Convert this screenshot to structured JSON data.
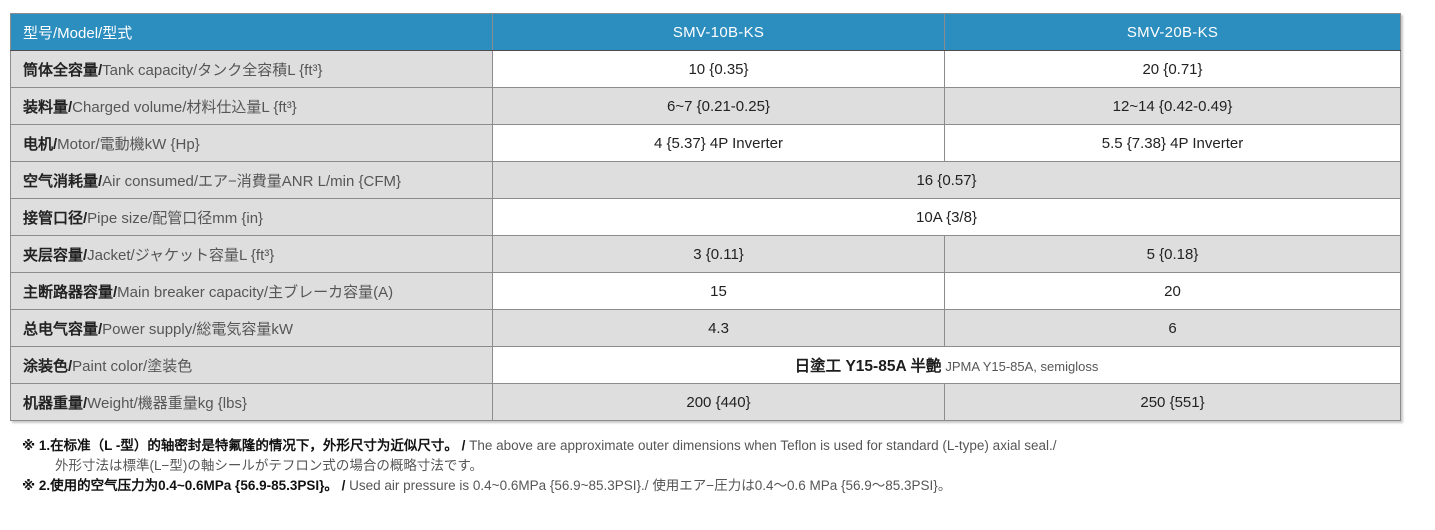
{
  "colors": {
    "header-bg": "#2c8ebf",
    "header-text": "#ffffff",
    "row-shade": "#dedede",
    "border": "#8c8c8c",
    "text-dark": "#222222",
    "text-gray": "#565656"
  },
  "table": {
    "header": {
      "label": "型号/Model/型式",
      "col1": "SMV-10B-KS",
      "col2": "SMV-20B-KS"
    },
    "rows": [
      {
        "label_zh": "筒体全容量/",
        "label_rest": "Tank capacity/タンク全容積L {ft³}",
        "v1": "10 {0.35}",
        "v2": "20 {0.71}"
      },
      {
        "label_zh": "装料量/",
        "label_rest": "Charged volume/材料仕込量L {ft³}",
        "v1": "6~7 {0.21-0.25}",
        "v2": "12~14 {0.42-0.49}"
      },
      {
        "label_zh": "电机/",
        "label_rest": "Motor/電動機kW {Hp}",
        "v1": "4 {5.37} 4P Inverter",
        "v2": "5.5 {7.38} 4P Inverter"
      },
      {
        "label_zh": "空气消耗量/",
        "label_rest": "Air consumed/エア−消費量ANR L/min {CFM}",
        "merged": "16 {0.57}"
      },
      {
        "label_zh": "接管口径/",
        "label_rest": "Pipe size/配管口径mm {in}",
        "merged": "10A {3/8}"
      },
      {
        "label_zh": "夹层容量/",
        "label_rest": "Jacket/ジャケット容量L {ft³}",
        "v1": "3 {0.11}",
        "v2": "5 {0.18}"
      },
      {
        "label_zh": "主断路器容量/",
        "label_rest": "Main breaker capacity/主ブレーカ容量(A)",
        "v1": "15",
        "v2": "20"
      },
      {
        "label_zh": "总电气容量/",
        "label_rest": "Power supply/総電気容量kW",
        "v1": "4.3",
        "v2": "6"
      },
      {
        "label_zh": "涂装色/",
        "label_rest": "Paint color/塗装色",
        "merged_main": "日塗工 Y15-85A 半艶",
        "merged_sub": "JPMA Y15-85A, semigloss"
      },
      {
        "label_zh": "机器重量/",
        "label_rest": "Weight/機器重量kg {lbs}",
        "v1": "200 {440}",
        "v2": "250 {551}"
      }
    ]
  },
  "notes": {
    "n1": {
      "zh": "※ 1.在标准（L -型）的轴密封是特氟隆的情况下，外形尺寸为近似尺寸。 / ",
      "en": "The above are approximate outer dimensions when Teflon is used for standard (L-type) axial seal./",
      "jp": "外形寸法は標準(L−型)の軸シールがテフロン式の場合の概略寸法です。"
    },
    "n2": {
      "zh": "※ 2.使用的空气压力为0.4~0.6MPa {56.9-85.3PSI}。 / ",
      "en": "Used air pressure is 0.4~0.6MPa {56.9~85.3PSI}./ ",
      "jp": "使用エア−圧力は0.4〜0.6 MPa {56.9〜85.3PSI}。"
    }
  }
}
